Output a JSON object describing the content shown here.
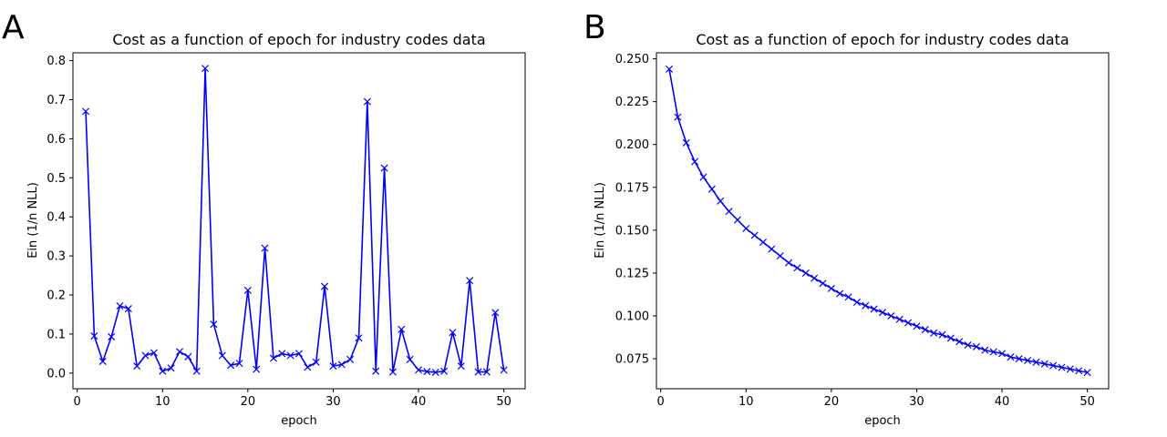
{
  "chart_data": [
    {
      "panel_label": "A",
      "type": "line",
      "title": "Cost as a function of epoch for industry codes data",
      "xlabel": "epoch",
      "ylabel": "Ein (1/n NLL)",
      "xlim": [
        -0.5,
        52.5
      ],
      "ylim": [
        -0.04,
        0.82
      ],
      "xticks": [
        0,
        10,
        20,
        30,
        40,
        50
      ],
      "xtick_labels": [
        "0",
        "10",
        "20",
        "30",
        "40",
        "50"
      ],
      "yticks": [
        0.0,
        0.1,
        0.2,
        0.3,
        0.4,
        0.5,
        0.6,
        0.7,
        0.8
      ],
      "ytick_labels": [
        "0.0",
        "0.1",
        "0.2",
        "0.3",
        "0.4",
        "0.5",
        "0.6",
        "0.7",
        "0.8"
      ],
      "color": "#0000ff",
      "marker": "x",
      "grid": false,
      "x": [
        1,
        2,
        3,
        4,
        5,
        6,
        7,
        8,
        9,
        10,
        11,
        12,
        13,
        14,
        15,
        16,
        17,
        18,
        19,
        20,
        21,
        22,
        23,
        24,
        25,
        26,
        27,
        28,
        29,
        30,
        31,
        32,
        33,
        34,
        35,
        36,
        37,
        38,
        39,
        40,
        41,
        42,
        43,
        44,
        45,
        46,
        47,
        48,
        49,
        50
      ],
      "y": [
        0.67,
        0.095,
        0.03,
        0.093,
        0.172,
        0.165,
        0.018,
        0.045,
        0.052,
        0.005,
        0.013,
        0.055,
        0.042,
        0.005,
        0.78,
        0.125,
        0.045,
        0.02,
        0.025,
        0.212,
        0.01,
        0.32,
        0.038,
        0.05,
        0.045,
        0.05,
        0.015,
        0.028,
        0.222,
        0.018,
        0.022,
        0.035,
        0.09,
        0.695,
        0.005,
        0.525,
        0.003,
        0.112,
        0.035,
        0.008,
        0.004,
        0.002,
        0.005,
        0.104,
        0.018,
        0.237,
        0.003,
        0.003,
        0.155,
        0.008
      ]
    },
    {
      "panel_label": "B",
      "type": "line",
      "title": "Cost as a function of epoch for industry codes data",
      "xlabel": "epoch",
      "ylabel": "Ein (1/n NLL)",
      "xlim": [
        -0.5,
        52.5
      ],
      "ylim": [
        0.0575,
        0.2535
      ],
      "xticks": [
        0,
        10,
        20,
        30,
        40,
        50
      ],
      "xtick_labels": [
        "0",
        "10",
        "20",
        "30",
        "40",
        "50"
      ],
      "yticks": [
        0.075,
        0.1,
        0.125,
        0.15,
        0.175,
        0.2,
        0.225,
        0.25
      ],
      "ytick_labels": [
        "0.075",
        "0.100",
        "0.125",
        "0.150",
        "0.175",
        "0.200",
        "0.225",
        "0.250"
      ],
      "color": "#0000ff",
      "marker": "x",
      "grid": false,
      "x": [
        1,
        2,
        3,
        4,
        5,
        6,
        7,
        8,
        9,
        10,
        11,
        12,
        13,
        14,
        15,
        16,
        17,
        18,
        19,
        20,
        21,
        22,
        23,
        24,
        25,
        26,
        27,
        28,
        29,
        30,
        31,
        32,
        33,
        34,
        35,
        36,
        37,
        38,
        39,
        40,
        41,
        42,
        43,
        44,
        45,
        46,
        47,
        48,
        49,
        50
      ],
      "y": [
        0.244,
        0.216,
        0.201,
        0.19,
        0.181,
        0.174,
        0.167,
        0.161,
        0.156,
        0.151,
        0.147,
        0.143,
        0.139,
        0.135,
        0.131,
        0.128,
        0.125,
        0.122,
        0.119,
        0.116,
        0.113,
        0.111,
        0.108,
        0.106,
        0.104,
        0.102,
        0.1,
        0.098,
        0.096,
        0.094,
        0.092,
        0.09,
        0.089,
        0.087,
        0.085,
        0.083,
        0.082,
        0.08,
        0.079,
        0.078,
        0.076,
        0.075,
        0.074,
        0.073,
        0.072,
        0.071,
        0.07,
        0.069,
        0.068,
        0.067
      ]
    }
  ]
}
